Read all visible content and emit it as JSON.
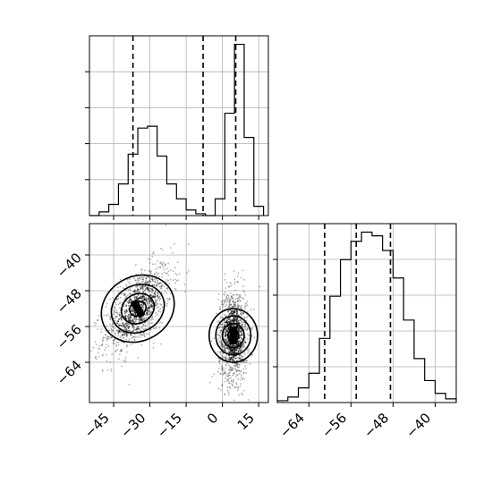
{
  "chart_data": [
    {
      "panel": "x-marginal",
      "type": "histogram",
      "xlim": [
        -55,
        19
      ],
      "bin_edges": [
        -55,
        -51,
        -47,
        -43,
        -39,
        -35,
        -31,
        -27,
        -23,
        -19,
        -15,
        -11,
        -7,
        -3,
        1,
        5,
        9,
        13,
        17
      ],
      "counts": [
        0,
        0.02,
        0.06,
        0.17,
        0.33,
        0.47,
        0.48,
        0.32,
        0.17,
        0.09,
        0.03,
        0.01,
        0,
        0.09,
        0.55,
        0.92,
        0.42,
        0.05
      ],
      "quantiles": [
        -37,
        -8,
        5.5
      ],
      "grid": true
    },
    {
      "panel": "y-marginal",
      "type": "histogram",
      "xlim": [
        -70,
        -36
      ],
      "x_ticks": [
        -64,
        -56,
        -48,
        -40
      ],
      "bin_edges": [
        -70,
        -68,
        -66,
        -64,
        -62,
        -60,
        -58,
        -56,
        -54,
        -52,
        -50,
        -48,
        -46,
        -44,
        -42,
        -40,
        -38,
        -36
      ],
      "counts": [
        0.01,
        0.03,
        0.08,
        0.16,
        0.35,
        0.58,
        0.78,
        0.88,
        0.93,
        0.91,
        0.83,
        0.68,
        0.45,
        0.24,
        0.12,
        0.05,
        0.02
      ],
      "quantiles": [
        -61,
        -55,
        -48.5
      ],
      "grid": true
    },
    {
      "panel": "joint",
      "type": "2d-density",
      "xlim": [
        -55,
        19
      ],
      "ylim": [
        -73,
        -33
      ],
      "x_ticks": [
        -45,
        -30,
        -15,
        0,
        15
      ],
      "y_ticks": [
        -40,
        -48,
        -56,
        -64
      ],
      "grid": true,
      "clusters": [
        {
          "center_x": -35,
          "center_y": -52,
          "spread_x": 7,
          "spread_y": 5,
          "rho": 0.6,
          "points": 1100
        },
        {
          "center_x": 4.5,
          "center_y": -58,
          "spread_x": 3,
          "spread_y": 5,
          "rho": 0.0,
          "points": 1300
        }
      ]
    }
  ]
}
